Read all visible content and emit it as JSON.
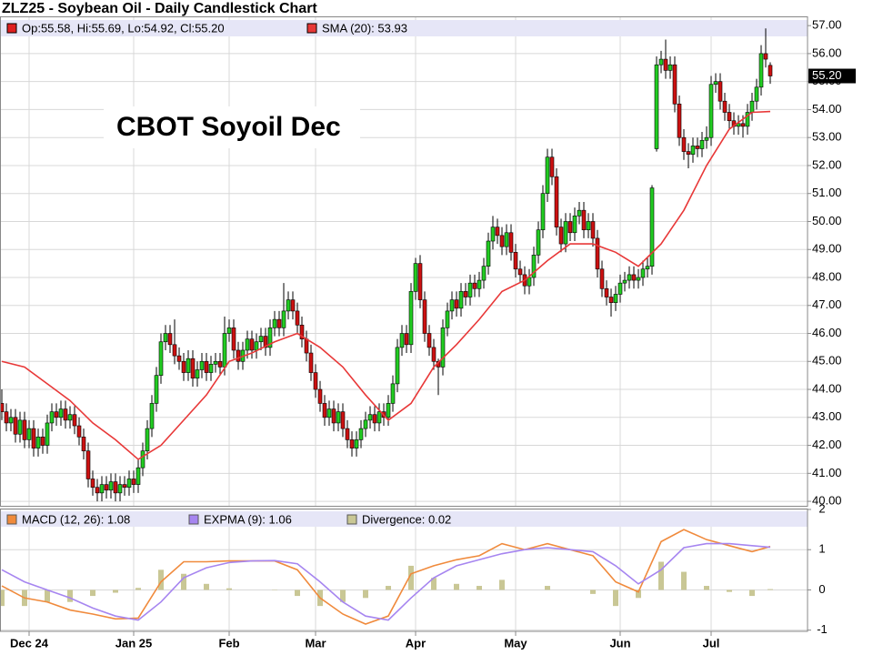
{
  "chart_data": [
    {
      "type": "candlestick",
      "title": "ZLZ25 - Soybean Oil - Daily Candlestick Chart",
      "name": "Op:55.58, Hi:55.69, Lo:54.92, Cl:55.20",
      "legend_color": "#e02020",
      "annotation": "CBOT Soyoil Dec",
      "up_color": "#22cc22",
      "down_color": "#cc1111",
      "open": [
        43.5,
        43.2,
        42.8,
        43.0,
        42.4,
        42.9,
        42.2,
        42.6,
        41.9,
        42.3,
        42.0,
        42.8,
        43.2,
        43.0,
        43.3,
        42.9,
        43.1,
        42.7,
        42.3,
        41.8,
        40.8,
        40.5,
        40.3,
        40.6,
        40.4,
        40.7,
        40.3,
        40.6,
        40.5,
        40.8,
        40.6,
        41.2,
        41.8,
        42.6,
        43.5,
        44.5,
        45.7,
        46.0,
        45.6,
        45.2,
        45.0,
        44.6,
        45.1,
        44.4,
        44.7,
        45.0,
        44.6,
        44.9,
        45.0,
        44.8,
        46.0,
        46.2,
        45.4,
        45.0,
        45.4,
        45.8,
        45.4,
        45.7,
        45.9,
        45.5,
        46.2,
        46.5,
        46.2,
        46.8,
        47.2,
        46.8,
        46.3,
        45.8,
        45.3,
        44.6,
        44.0,
        43.5,
        43.0,
        43.3,
        42.8,
        43.2,
        42.6,
        42.2,
        41.9,
        42.2,
        42.6,
        42.9,
        43.1,
        42.8,
        43.2,
        43.0,
        43.5,
        44.2,
        45.5,
        46.0,
        45.6,
        47.5,
        48.5,
        47.2,
        46.0,
        45.5,
        45.0,
        44.8,
        46.2,
        46.8,
        47.2,
        46.9,
        47.5,
        47.3,
        47.8,
        47.6,
        47.9,
        48.4,
        49.3,
        49.8,
        49.5,
        49.1,
        49.6,
        48.9,
        48.3,
        48.1,
        47.7,
        48.0,
        48.8,
        49.7,
        51.0,
        52.3,
        51.6,
        49.8,
        49.2,
        50.0,
        49.6,
        50.2,
        50.4,
        49.7,
        50.0,
        49.4,
        48.3,
        47.6,
        47.3,
        47.1,
        47.4,
        47.8,
        47.9,
        48.1,
        47.9,
        48.0,
        48.3,
        48.4,
        52.6,
        55.6,
        55.8,
        55.4,
        55.6,
        54.2,
        53.0,
        52.5,
        52.4,
        52.7,
        52.6,
        52.9,
        53.0,
        54.9,
        55.0,
        54.3,
        53.9,
        53.6,
        53.4,
        53.5,
        53.4,
        53.9,
        54.3,
        54.8,
        56.0,
        55.58
      ],
      "high": [
        44.0,
        43.5,
        43.3,
        43.3,
        43.2,
        43.2,
        42.9,
        42.9,
        42.6,
        42.6,
        43.1,
        43.5,
        43.5,
        43.6,
        43.6,
        43.4,
        43.4,
        43.0,
        42.6,
        42.1,
        41.1,
        40.8,
        40.9,
        40.9,
        41.0,
        41.0,
        40.9,
        40.9,
        41.1,
        41.1,
        41.5,
        42.1,
        42.9,
        43.8,
        44.8,
        46.0,
        46.3,
        46.3,
        46.5,
        45.5,
        45.3,
        45.4,
        45.4,
        45.0,
        45.3,
        45.3,
        45.2,
        45.3,
        45.3,
        46.6,
        46.5,
        46.5,
        45.7,
        45.7,
        46.1,
        46.1,
        46.0,
        46.2,
        46.2,
        46.5,
        46.8,
        46.8,
        47.8,
        47.5,
        47.5,
        47.1,
        46.6,
        46.1,
        45.6,
        44.9,
        44.3,
        43.8,
        43.6,
        43.6,
        43.5,
        43.5,
        42.9,
        42.5,
        42.5,
        42.9,
        43.2,
        43.4,
        43.4,
        43.5,
        43.5,
        43.8,
        44.5,
        45.8,
        46.3,
        46.3,
        47.8,
        48.7,
        48.8,
        47.5,
        46.3,
        45.8,
        45.1,
        46.5,
        47.1,
        47.5,
        47.5,
        47.8,
        47.8,
        48.1,
        48.1,
        48.2,
        48.7,
        49.6,
        50.2,
        50.1,
        49.8,
        49.9,
        49.9,
        49.2,
        48.6,
        48.4,
        48.3,
        49.1,
        50.0,
        51.3,
        52.6,
        52.6,
        51.9,
        50.1,
        50.3,
        50.3,
        50.5,
        50.7,
        50.7,
        50.3,
        50.3,
        49.7,
        48.6,
        47.9,
        47.6,
        47.7,
        48.1,
        48.2,
        48.4,
        48.4,
        48.3,
        48.6,
        48.7,
        51.3,
        55.9,
        56.1,
        56.5,
        55.9,
        55.9,
        54.5,
        53.3,
        52.8,
        53.0,
        53.0,
        53.2,
        53.4,
        55.2,
        55.3,
        55.3,
        54.6,
        54.2,
        53.9,
        53.8,
        53.8,
        54.2,
        54.6,
        55.1,
        56.3,
        56.9,
        55.69
      ],
      "low": [
        42.9,
        42.5,
        42.5,
        42.1,
        42.1,
        41.9,
        41.9,
        41.6,
        41.6,
        41.7,
        41.7,
        42.5,
        42.7,
        42.7,
        42.6,
        42.6,
        42.4,
        42.0,
        41.5,
        40.5,
        40.2,
        40.0,
        40.0,
        40.1,
        40.1,
        40.0,
        40.0,
        40.2,
        40.2,
        40.3,
        40.3,
        40.9,
        41.5,
        42.3,
        43.2,
        44.2,
        45.4,
        45.3,
        44.9,
        44.7,
        44.3,
        44.3,
        44.1,
        44.1,
        44.4,
        44.3,
        44.3,
        44.6,
        44.5,
        44.5,
        45.7,
        45.1,
        44.7,
        44.7,
        45.1,
        45.1,
        45.1,
        45.4,
        45.2,
        45.2,
        45.9,
        45.9,
        45.9,
        46.5,
        46.5,
        46.0,
        45.5,
        45.0,
        44.3,
        43.7,
        43.2,
        42.7,
        42.7,
        42.5,
        42.5,
        42.3,
        41.9,
        41.6,
        41.6,
        41.9,
        42.3,
        42.6,
        42.5,
        42.5,
        42.7,
        42.7,
        43.2,
        43.9,
        45.2,
        45.3,
        45.3,
        47.2,
        46.9,
        45.7,
        45.2,
        44.7,
        43.8,
        44.5,
        45.9,
        46.5,
        46.6,
        46.6,
        47.0,
        47.0,
        47.3,
        47.3,
        47.6,
        48.1,
        49.0,
        49.2,
        48.8,
        48.8,
        48.6,
        48.0,
        47.8,
        47.4,
        47.4,
        47.7,
        48.5,
        49.4,
        50.7,
        51.3,
        49.5,
        48.9,
        48.9,
        49.3,
        49.3,
        49.9,
        49.4,
        49.4,
        49.1,
        48.0,
        47.3,
        47.0,
        46.6,
        46.8,
        47.1,
        47.5,
        47.6,
        47.6,
        47.6,
        47.7,
        48.0,
        48.1,
        52.5,
        55.3,
        55.1,
        55.1,
        53.9,
        52.7,
        52.2,
        51.9,
        52.1,
        52.3,
        52.3,
        52.6,
        52.7,
        54.6,
        54.0,
        53.6,
        53.3,
        53.1,
        53.1,
        53.0,
        53.1,
        53.6,
        54.0,
        54.5,
        55.5,
        54.92
      ],
      "close": [
        43.2,
        42.8,
        43.0,
        42.4,
        42.9,
        42.2,
        42.6,
        41.9,
        42.3,
        42.0,
        42.8,
        43.2,
        43.0,
        43.3,
        42.9,
        43.1,
        42.7,
        42.3,
        41.8,
        40.8,
        40.5,
        40.3,
        40.6,
        40.4,
        40.7,
        40.3,
        40.6,
        40.5,
        40.8,
        40.6,
        41.2,
        41.8,
        42.6,
        43.5,
        44.5,
        45.7,
        46.0,
        45.6,
        45.2,
        45.0,
        44.6,
        45.1,
        44.4,
        44.7,
        45.0,
        44.6,
        44.9,
        45.0,
        44.8,
        46.0,
        46.2,
        45.4,
        45.0,
        45.4,
        45.8,
        45.4,
        45.7,
        45.9,
        45.5,
        46.2,
        46.5,
        46.2,
        46.8,
        47.2,
        46.8,
        46.3,
        45.8,
        45.3,
        44.6,
        44.0,
        43.5,
        43.0,
        43.3,
        42.8,
        43.2,
        42.6,
        42.2,
        41.9,
        42.2,
        42.6,
        42.9,
        43.1,
        42.8,
        43.2,
        43.0,
        43.5,
        44.2,
        45.5,
        46.0,
        45.6,
        47.5,
        48.5,
        47.2,
        46.0,
        45.5,
        45.0,
        44.8,
        46.2,
        46.8,
        47.2,
        46.9,
        47.5,
        47.3,
        47.8,
        47.6,
        47.9,
        48.4,
        49.3,
        49.8,
        49.5,
        49.1,
        49.6,
        48.9,
        48.3,
        48.1,
        47.7,
        48.0,
        48.8,
        49.7,
        51.0,
        52.3,
        51.6,
        49.8,
        49.2,
        50.0,
        49.6,
        50.2,
        50.4,
        49.7,
        50.0,
        49.4,
        48.3,
        47.6,
        47.3,
        47.1,
        47.4,
        47.8,
        47.9,
        48.1,
        47.9,
        48.0,
        48.3,
        48.4,
        51.2,
        55.6,
        55.8,
        55.4,
        55.6,
        54.2,
        53.0,
        52.5,
        52.4,
        52.7,
        52.6,
        52.9,
        53.0,
        54.9,
        55.0,
        54.3,
        53.9,
        53.6,
        53.4,
        53.5,
        53.4,
        53.9,
        54.3,
        54.8,
        56.0,
        55.8,
        55.2
      ],
      "last_label": {
        "value": 55.2,
        "label": "55.20"
      },
      "series": [
        {
          "name": "SMA (20): 53.93",
          "color": "#e83838",
          "x": [
            0,
            5,
            10,
            15,
            20,
            25,
            30,
            35,
            40,
            45,
            50,
            55,
            60,
            65,
            70,
            75,
            80,
            85,
            90,
            95,
            100,
            105,
            110,
            115,
            120,
            125,
            130,
            135,
            140,
            145,
            150,
            155,
            160,
            165,
            169
          ],
          "values": [
            45.0,
            44.8,
            44.2,
            43.6,
            42.8,
            42.2,
            41.5,
            42.0,
            42.9,
            43.8,
            45.0,
            45.3,
            45.7,
            46.0,
            45.5,
            44.8,
            43.8,
            42.9,
            43.5,
            44.8,
            45.6,
            46.5,
            47.5,
            47.9,
            48.6,
            49.2,
            49.2,
            48.9,
            48.4,
            49.2,
            50.4,
            52.0,
            53.3,
            53.9,
            53.93
          ]
        }
      ],
      "ylim": [
        39.84,
        57.33
      ],
      "yticks": [
        {
          "value": 40,
          "label": "40.00"
        },
        {
          "value": 41,
          "label": "41.00"
        },
        {
          "value": 42,
          "label": "42.00"
        },
        {
          "value": 43,
          "label": "43.00"
        },
        {
          "value": 44,
          "label": "44.00"
        },
        {
          "value": 45,
          "label": "45.00"
        },
        {
          "value": 46,
          "label": "46.00"
        },
        {
          "value": 47,
          "label": "47.00"
        },
        {
          "value": 48,
          "label": "48.00"
        },
        {
          "value": 49,
          "label": "49.00"
        },
        {
          "value": 50,
          "label": "50.00"
        },
        {
          "value": 51,
          "label": "51.00"
        },
        {
          "value": 52,
          "label": "52.00"
        },
        {
          "value": 53,
          "label": "53.00"
        },
        {
          "value": 54,
          "label": "54.00"
        },
        {
          "value": 55,
          "label": "55.00"
        },
        {
          "value": 56,
          "label": "56.00"
        },
        {
          "value": 57,
          "label": "57.00"
        }
      ],
      "grid": true
    },
    {
      "type": "line",
      "x": [
        0,
        5,
        10,
        15,
        20,
        25,
        30,
        35,
        40,
        45,
        50,
        55,
        60,
        65,
        70,
        75,
        80,
        85,
        90,
        95,
        100,
        105,
        110,
        115,
        120,
        125,
        130,
        135,
        140,
        145,
        150,
        155,
        160,
        165,
        169
      ],
      "series": [
        {
          "name": "MACD (12, 26): 1.08",
          "color": "#f08a3c",
          "values": [
            0.1,
            -0.2,
            -0.3,
            -0.5,
            -0.6,
            -0.72,
            -0.7,
            0.2,
            0.7,
            0.7,
            0.72,
            0.72,
            0.72,
            0.5,
            -0.2,
            -0.6,
            -0.85,
            -0.65,
            0.4,
            0.6,
            0.75,
            0.85,
            1.15,
            1.0,
            1.15,
            1.0,
            0.85,
            0.2,
            -0.05,
            1.2,
            1.5,
            1.25,
            1.1,
            0.95,
            1.08
          ]
        },
        {
          "name": "EXPMA (9): 1.06",
          "color": "#a685f0",
          "values": [
            0.5,
            0.2,
            0.0,
            -0.2,
            -0.45,
            -0.65,
            -0.75,
            -0.3,
            0.3,
            0.55,
            0.68,
            0.72,
            0.73,
            0.65,
            0.2,
            -0.3,
            -0.65,
            -0.75,
            -0.2,
            0.3,
            0.6,
            0.75,
            0.9,
            1.0,
            1.05,
            1.0,
            0.95,
            0.6,
            0.15,
            0.5,
            1.05,
            1.15,
            1.15,
            1.1,
            1.06
          ]
        },
        {
          "name": "Divergence: 0.02",
          "color": "#c9c795",
          "type": "bar",
          "values": [
            -0.4,
            -0.4,
            -0.3,
            -0.3,
            -0.15,
            -0.07,
            0.05,
            0.5,
            0.4,
            0.15,
            0.04,
            0.0,
            -0.01,
            -0.15,
            -0.4,
            -0.3,
            -0.2,
            0.1,
            0.6,
            0.3,
            0.15,
            0.1,
            0.25,
            0.0,
            0.1,
            0.0,
            -0.1,
            -0.4,
            -0.2,
            0.7,
            0.45,
            0.1,
            -0.05,
            -0.15,
            0.02
          ]
        }
      ],
      "xlim": [
        -0.4,
        177.2
      ],
      "xticks": [
        {
          "value": 6,
          "label": "Dec 24"
        },
        {
          "value": 29,
          "label": "Jan 25"
        },
        {
          "value": 50,
          "label": "Feb"
        },
        {
          "value": 69,
          "label": "Mar"
        },
        {
          "value": 91,
          "label": "Apr"
        },
        {
          "value": 113,
          "label": "May"
        },
        {
          "value": 136,
          "label": "Jun"
        },
        {
          "value": 156,
          "label": "Jul"
        }
      ],
      "ylim": [
        -1.03,
        2.0
      ],
      "yticks": [
        -1,
        0,
        1,
        2
      ],
      "grid": true
    }
  ]
}
